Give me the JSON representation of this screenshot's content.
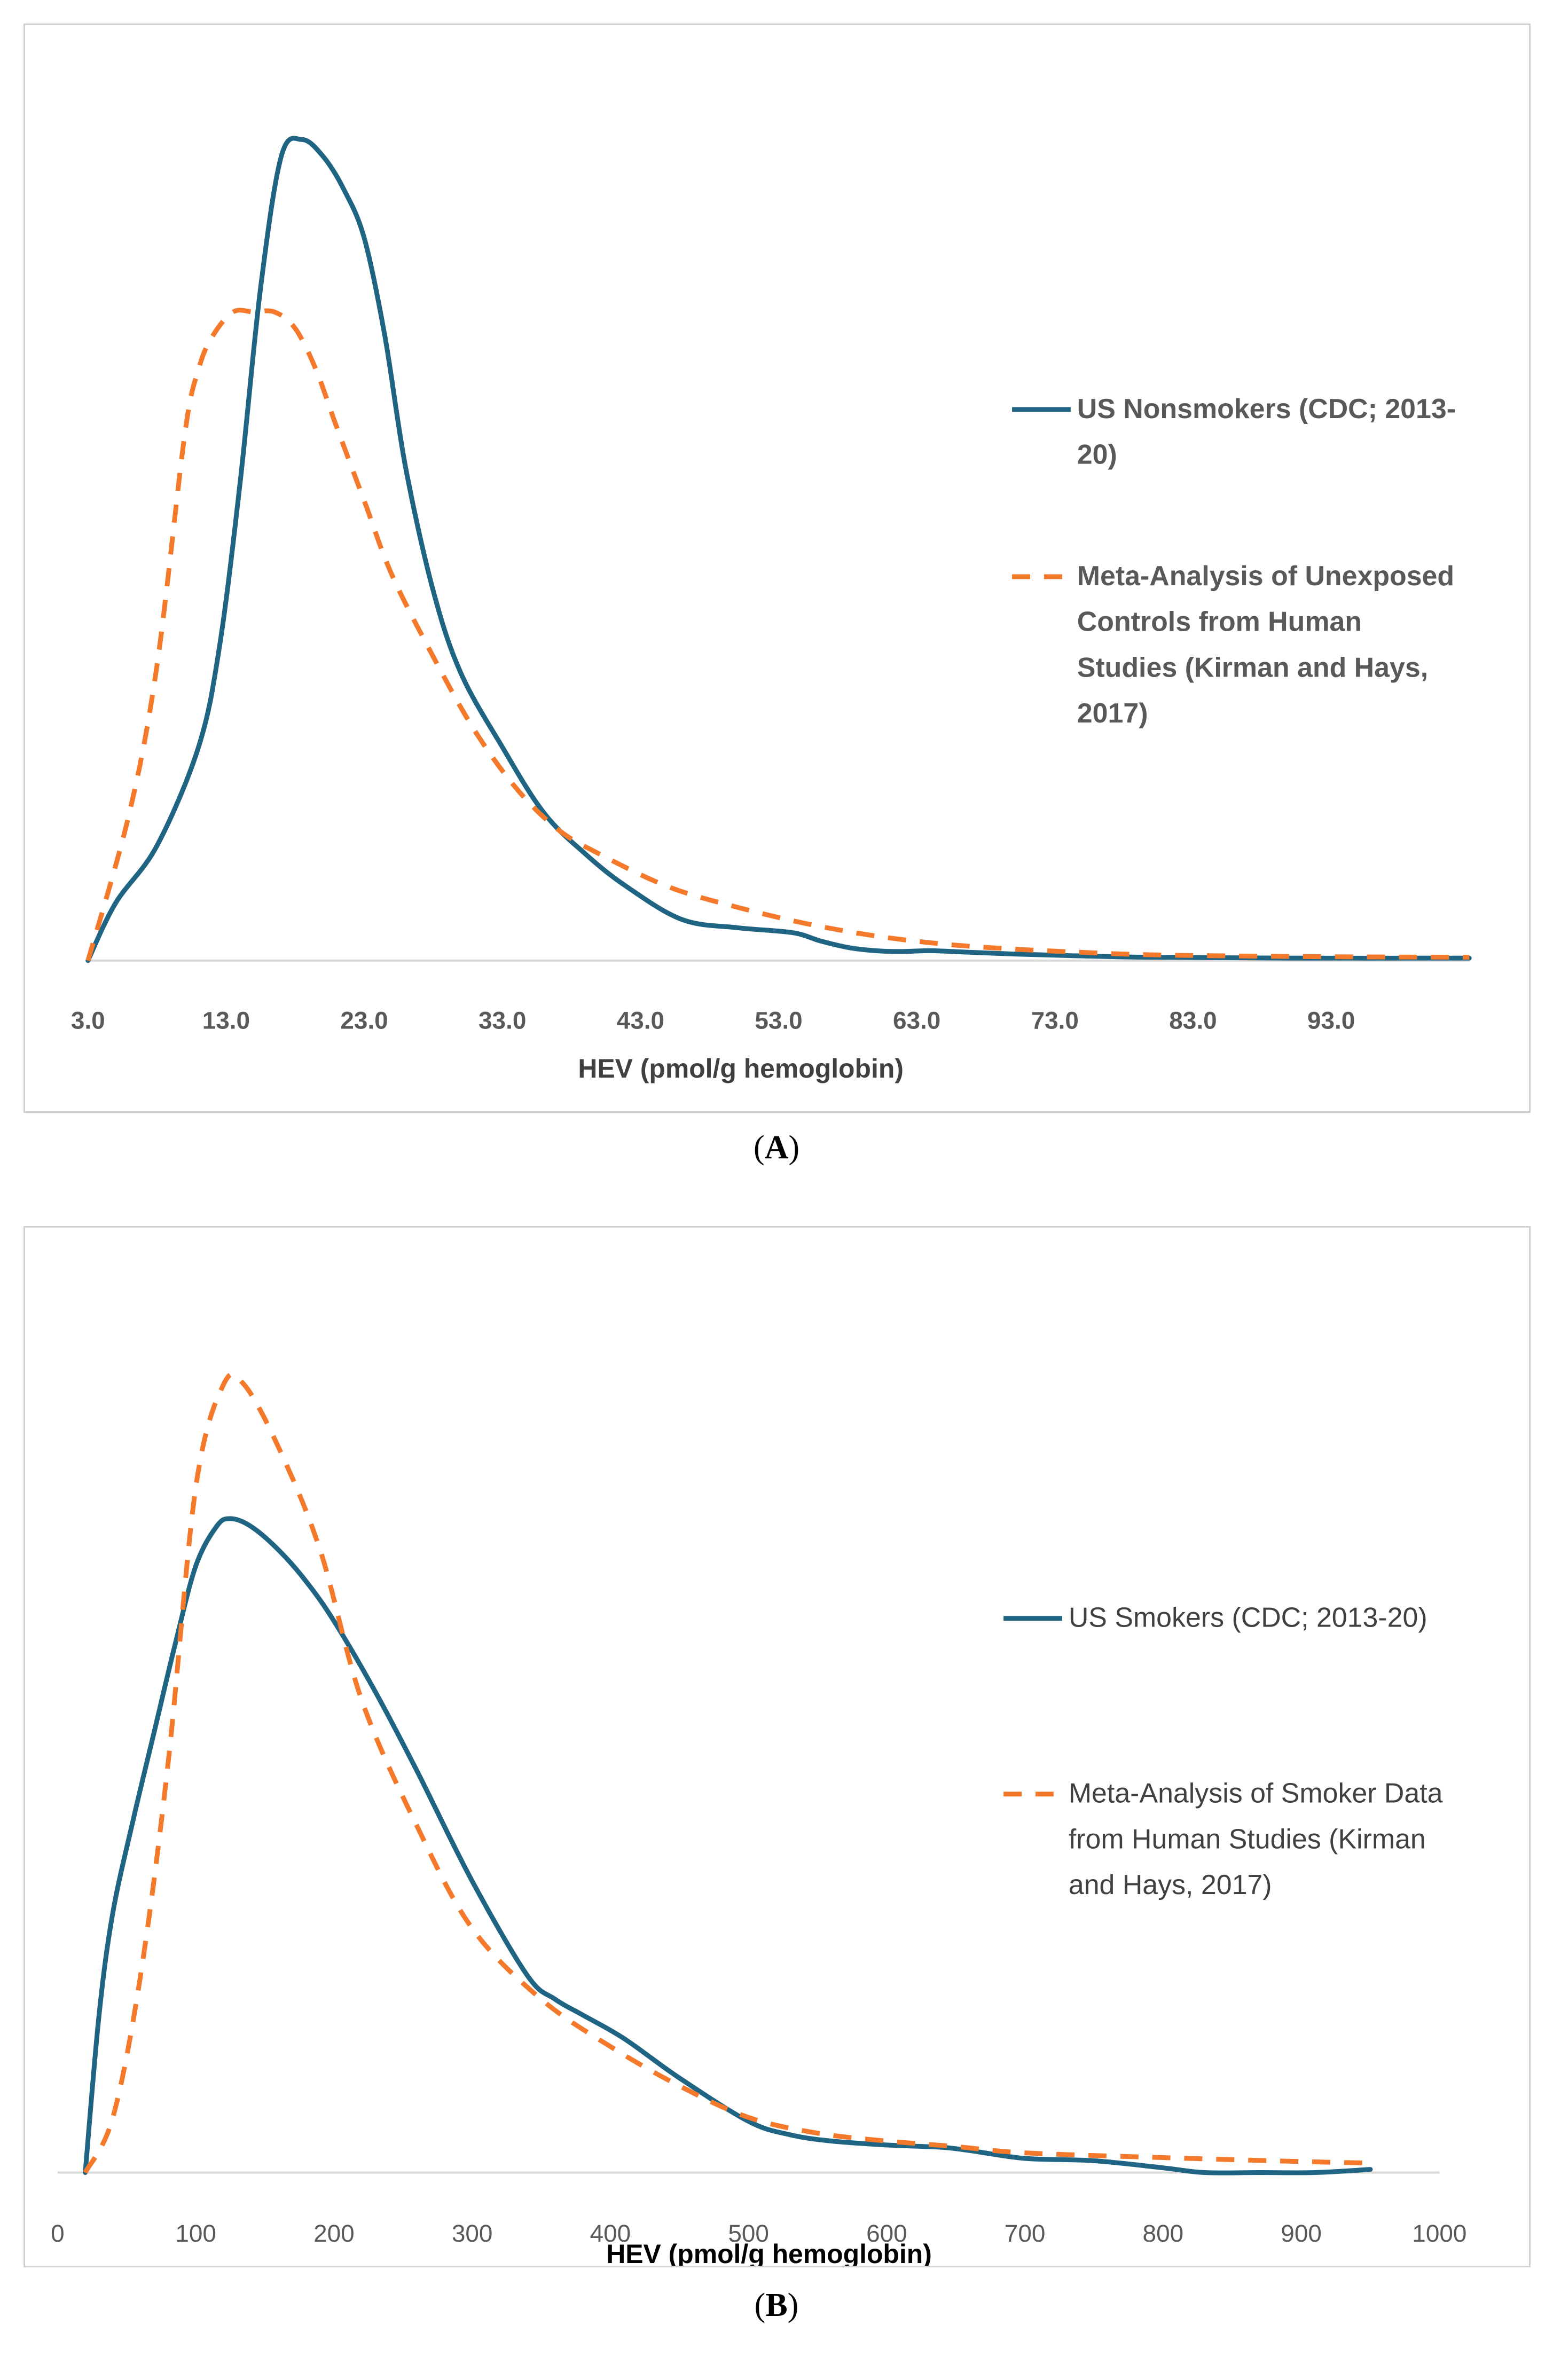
{
  "colors": {
    "series_solid": "#1f6482",
    "series_dashed": "#f4792b",
    "axis": "#d9d9d9"
  },
  "chart_data": [
    {
      "id": "A",
      "type": "line",
      "caption_label": "A",
      "xlabel": "HEV (pmol/g hemoglobin)",
      "ylabel": "",
      "xlim": [
        3.0,
        103.0
      ],
      "ylim": [
        0,
        1
      ],
      "xticks": [
        "3.0",
        "13.0",
        "23.0",
        "33.0",
        "43.0",
        "53.0",
        "63.0",
        "73.0",
        "83.0",
        "93.0"
      ],
      "series": [
        {
          "name": "US Nonsmokers (CDC; 2013-20)",
          "legend_lines": [
            "US Nonsmokers (CDC; 2013-",
            "20)"
          ],
          "style": "solid",
          "x": [
            3,
            5,
            8,
            11,
            12.5,
            14,
            15.5,
            17,
            18.5,
            20,
            21.5,
            23,
            24.5,
            26,
            28,
            30,
            33,
            36,
            39,
            42,
            46,
            50,
            54,
            56,
            58,
            60,
            62,
            64,
            67,
            70,
            74,
            80,
            90,
            103
          ],
          "values": [
            0.0,
            0.07,
            0.14,
            0.26,
            0.38,
            0.58,
            0.82,
            0.98,
            1.0,
            0.98,
            0.94,
            0.88,
            0.76,
            0.6,
            0.45,
            0.35,
            0.26,
            0.18,
            0.13,
            0.09,
            0.05,
            0.04,
            0.034,
            0.024,
            0.016,
            0.012,
            0.011,
            0.012,
            0.01,
            0.008,
            0.006,
            0.004,
            0.003,
            0.003
          ]
        },
        {
          "name": "Meta-Analysis of Unexposed Controls from Human Studies (Kirman and Hays, 2017)",
          "legend_lines": [
            "Meta-Analysis of Unexposed",
            "Controls from Human",
            "Studies (Kirman and Hays,",
            "2017)"
          ],
          "style": "dashed",
          "x": [
            3,
            6,
            8,
            10,
            11,
            12,
            13.5,
            15,
            16.5,
            18,
            19.5,
            21,
            23,
            25,
            28,
            31,
            34,
            37,
            40,
            45,
            50,
            55,
            60,
            65,
            70,
            75,
            80,
            90,
            103
          ],
          "values": [
            0.0,
            0.18,
            0.36,
            0.64,
            0.72,
            0.76,
            0.79,
            0.79,
            0.79,
            0.77,
            0.72,
            0.65,
            0.56,
            0.47,
            0.37,
            0.28,
            0.21,
            0.16,
            0.13,
            0.09,
            0.065,
            0.045,
            0.03,
            0.02,
            0.014,
            0.01,
            0.007,
            0.005,
            0.004
          ]
        }
      ]
    },
    {
      "id": "B",
      "type": "line",
      "caption_label": "B",
      "xlabel": "HEV (pmol/g hemoglobin)",
      "ylabel": "",
      "xlim": [
        0,
        1000
      ],
      "ylim": [
        0,
        1
      ],
      "xticks": [
        "0",
        "100",
        "200",
        "300",
        "400",
        "500",
        "600",
        "700",
        "800",
        "900",
        "1000"
      ],
      "series": [
        {
          "name": "US Smokers (CDC; 2013-20)",
          "legend_lines": [
            "US Smokers (CDC; 2013-20)"
          ],
          "style": "solid",
          "x": [
            20,
            30,
            40,
            55,
            70,
            85,
            100,
            115,
            125,
            140,
            160,
            180,
            200,
            230,
            260,
            300,
            340,
            360,
            380,
            410,
            450,
            500,
            530,
            560,
            600,
            640,
            660,
            700,
            750,
            800,
            830,
            870,
            910,
            950
          ],
          "values": [
            0.0,
            0.2,
            0.33,
            0.45,
            0.56,
            0.67,
            0.77,
            0.82,
            0.83,
            0.82,
            0.79,
            0.75,
            0.7,
            0.61,
            0.51,
            0.37,
            0.25,
            0.22,
            0.2,
            0.17,
            0.12,
            0.065,
            0.048,
            0.04,
            0.035,
            0.032,
            0.028,
            0.018,
            0.015,
            0.006,
            0.0,
            0.0,
            0.0,
            0.004
          ]
        },
        {
          "name": "Meta-Analysis of Smoker Data from Human Studies (Kirman and Hays, 2017)",
          "legend_lines": [
            "Meta-Analysis of Smoker Data",
            "from Human Studies (Kirman",
            "and Hays, 2017)"
          ],
          "style": "dashed",
          "x": [
            20,
            40,
            60,
            80,
            100,
            120,
            135,
            160,
            190,
            220,
            260,
            300,
            350,
            400,
            450,
            500,
            550,
            600,
            650,
            700,
            800,
            900,
            950
          ],
          "values": [
            0.0,
            0.07,
            0.25,
            0.52,
            0.87,
            1.0,
            1.0,
            0.92,
            0.79,
            0.6,
            0.44,
            0.31,
            0.22,
            0.16,
            0.11,
            0.07,
            0.05,
            0.04,
            0.033,
            0.025,
            0.019,
            0.014,
            0.012
          ]
        }
      ]
    }
  ]
}
